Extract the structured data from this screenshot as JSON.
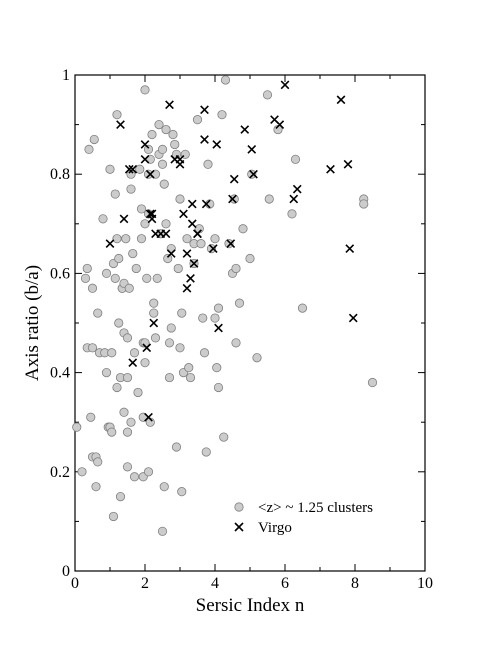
{
  "chart_data": {
    "type": "scatter",
    "title": "",
    "xlabel": "Sersic Index n",
    "ylabel": "Axis ratio (b/a)",
    "xlim": [
      0,
      10
    ],
    "ylim": [
      0,
      1
    ],
    "xticks": [
      0,
      2,
      4,
      6,
      8,
      10
    ],
    "yticks": [
      0,
      0.2,
      0.4,
      0.6,
      0.8,
      1
    ],
    "xtick_labels": [
      "0",
      "2",
      "4",
      "6",
      "8",
      "10"
    ],
    "ytick_labels": [
      "0",
      "0.2",
      "0.4",
      "0.6",
      "0.8",
      "1"
    ],
    "grid": false,
    "legend_position": "bottom-right",
    "series": [
      {
        "name": "<z> ~ 1.25 clusters",
        "marker": "circle",
        "color": "#cccccc",
        "points": [
          [
            0.05,
            0.29
          ],
          [
            0.2,
            0.2
          ],
          [
            0.3,
            0.59
          ],
          [
            0.35,
            0.45
          ],
          [
            0.35,
            0.61
          ],
          [
            0.4,
            0.85
          ],
          [
            0.45,
            0.31
          ],
          [
            0.5,
            0.57
          ],
          [
            0.5,
            0.45
          ],
          [
            0.55,
            0.87
          ],
          [
            0.5,
            0.23
          ],
          [
            0.6,
            0.23
          ],
          [
            0.6,
            0.17
          ],
          [
            0.65,
            0.22
          ],
          [
            0.65,
            0.52
          ],
          [
            0.7,
            0.44
          ],
          [
            0.8,
            0.71
          ],
          [
            0.85,
            0.44
          ],
          [
            0.9,
            0.6
          ],
          [
            0.9,
            0.4
          ],
          [
            0.95,
            0.29
          ],
          [
            1.0,
            0.29
          ],
          [
            1.0,
            0.81
          ],
          [
            1.05,
            0.44
          ],
          [
            1.05,
            0.28
          ],
          [
            1.1,
            0.11
          ],
          [
            1.1,
            0.62
          ],
          [
            1.15,
            0.76
          ],
          [
            1.15,
            0.59
          ],
          [
            1.2,
            0.92
          ],
          [
            1.2,
            0.67
          ],
          [
            1.2,
            0.37
          ],
          [
            1.25,
            0.63
          ],
          [
            1.25,
            0.5
          ],
          [
            1.3,
            0.39
          ],
          [
            1.35,
            0.57
          ],
          [
            1.3,
            0.15
          ],
          [
            1.35,
            0.57
          ],
          [
            1.4,
            0.58
          ],
          [
            1.4,
            0.48
          ],
          [
            1.4,
            0.32
          ],
          [
            1.45,
            0.67
          ],
          [
            1.5,
            0.47
          ],
          [
            1.5,
            0.39
          ],
          [
            1.5,
            0.28
          ],
          [
            1.5,
            0.21
          ],
          [
            1.55,
            0.57
          ],
          [
            1.6,
            0.8
          ],
          [
            1.6,
            0.77
          ],
          [
            1.6,
            0.3
          ],
          [
            1.65,
            0.64
          ],
          [
            1.7,
            0.44
          ],
          [
            1.7,
            0.19
          ],
          [
            1.75,
            0.61
          ],
          [
            1.8,
            0.36
          ],
          [
            1.85,
            0.81
          ],
          [
            1.9,
            0.73
          ],
          [
            1.9,
            0.67
          ],
          [
            1.95,
            0.46
          ],
          [
            1.95,
            0.31
          ],
          [
            1.95,
            0.19
          ],
          [
            2.0,
            0.97
          ],
          [
            2.0,
            0.7
          ],
          [
            2.0,
            0.46
          ],
          [
            2.0,
            0.42
          ],
          [
            2.05,
            0.59
          ],
          [
            2.1,
            0.85
          ],
          [
            2.1,
            0.8
          ],
          [
            2.1,
            0.72
          ],
          [
            2.1,
            0.2
          ],
          [
            2.15,
            0.83
          ],
          [
            2.15,
            0.3
          ],
          [
            2.2,
            0.88
          ],
          [
            2.25,
            0.54
          ],
          [
            2.25,
            0.52
          ],
          [
            2.3,
            0.8
          ],
          [
            2.3,
            0.47
          ],
          [
            2.35,
            0.59
          ],
          [
            2.4,
            0.9
          ],
          [
            2.4,
            0.84
          ],
          [
            2.45,
            0.68
          ],
          [
            2.5,
            0.85
          ],
          [
            2.5,
            0.82
          ],
          [
            2.5,
            0.08
          ],
          [
            2.55,
            0.78
          ],
          [
            2.55,
            0.17
          ],
          [
            2.6,
            0.89
          ],
          [
            2.6,
            0.7
          ],
          [
            2.65,
            0.63
          ],
          [
            2.7,
            0.46
          ],
          [
            2.7,
            0.39
          ],
          [
            2.75,
            0.65
          ],
          [
            2.75,
            0.49
          ],
          [
            2.8,
            0.88
          ],
          [
            2.85,
            0.86
          ],
          [
            2.9,
            0.84
          ],
          [
            2.9,
            0.25
          ],
          [
            2.95,
            0.61
          ],
          [
            3.0,
            0.75
          ],
          [
            3.0,
            0.45
          ],
          [
            3.05,
            0.52
          ],
          [
            3.05,
            0.16
          ],
          [
            3.1,
            0.4
          ],
          [
            3.15,
            0.84
          ],
          [
            3.2,
            0.67
          ],
          [
            3.25,
            0.41
          ],
          [
            3.3,
            0.39
          ],
          [
            3.4,
            0.66
          ],
          [
            3.4,
            0.62
          ],
          [
            3.5,
            0.91
          ],
          [
            3.55,
            0.69
          ],
          [
            3.6,
            0.66
          ],
          [
            3.65,
            0.51
          ],
          [
            3.7,
            0.44
          ],
          [
            3.75,
            0.24
          ],
          [
            3.8,
            0.82
          ],
          [
            3.85,
            0.74
          ],
          [
            3.9,
            0.65
          ],
          [
            4.0,
            0.67
          ],
          [
            4.0,
            0.51
          ],
          [
            4.05,
            0.41
          ],
          [
            4.1,
            0.53
          ],
          [
            4.1,
            0.37
          ],
          [
            4.2,
            0.92
          ],
          [
            4.25,
            0.27
          ],
          [
            4.3,
            0.99
          ],
          [
            4.4,
            0.66
          ],
          [
            4.5,
            0.6
          ],
          [
            4.55,
            0.75
          ],
          [
            4.6,
            0.46
          ],
          [
            4.6,
            0.61
          ],
          [
            4.7,
            0.54
          ],
          [
            4.8,
            0.69
          ],
          [
            5.0,
            0.63
          ],
          [
            5.05,
            0.8
          ],
          [
            5.2,
            0.43
          ],
          [
            5.5,
            0.96
          ],
          [
            5.55,
            0.75
          ],
          [
            5.8,
            0.89
          ],
          [
            6.2,
            0.72
          ],
          [
            6.3,
            0.83
          ],
          [
            6.5,
            0.53
          ],
          [
            8.25,
            0.75
          ],
          [
            8.25,
            0.74
          ],
          [
            8.5,
            0.38
          ]
        ]
      },
      {
        "name": "Virgo",
        "marker": "x",
        "color": "#000000",
        "points": [
          [
            1.0,
            0.66
          ],
          [
            1.3,
            0.9
          ],
          [
            1.4,
            0.71
          ],
          [
            1.55,
            0.81
          ],
          [
            1.65,
            0.81
          ],
          [
            1.65,
            0.42
          ],
          [
            2.0,
            0.86
          ],
          [
            2.0,
            0.83
          ],
          [
            2.05,
            0.45
          ],
          [
            2.1,
            0.31
          ],
          [
            2.15,
            0.72
          ],
          [
            2.15,
            0.8
          ],
          [
            2.2,
            0.72
          ],
          [
            2.2,
            0.71
          ],
          [
            2.25,
            0.5
          ],
          [
            2.3,
            0.68
          ],
          [
            2.45,
            0.68
          ],
          [
            2.6,
            0.68
          ],
          [
            2.7,
            0.94
          ],
          [
            2.75,
            0.64
          ],
          [
            2.85,
            0.83
          ],
          [
            3.0,
            0.83
          ],
          [
            3.0,
            0.82
          ],
          [
            3.1,
            0.72
          ],
          [
            3.2,
            0.64
          ],
          [
            3.2,
            0.57
          ],
          [
            3.3,
            0.59
          ],
          [
            3.35,
            0.74
          ],
          [
            3.35,
            0.7
          ],
          [
            3.4,
            0.62
          ],
          [
            3.5,
            0.68
          ],
          [
            3.5,
            0.68
          ],
          [
            3.7,
            0.87
          ],
          [
            3.7,
            0.93
          ],
          [
            3.75,
            0.74
          ],
          [
            3.95,
            0.65
          ],
          [
            4.05,
            0.86
          ],
          [
            4.1,
            0.49
          ],
          [
            4.45,
            0.66
          ],
          [
            4.5,
            0.75
          ],
          [
            4.55,
            0.79
          ],
          [
            4.85,
            0.89
          ],
          [
            5.05,
            0.85
          ],
          [
            5.1,
            0.8
          ],
          [
            5.7,
            0.91
          ],
          [
            5.85,
            0.9
          ],
          [
            6.0,
            0.98
          ],
          [
            6.25,
            0.75
          ],
          [
            6.35,
            0.77
          ],
          [
            7.3,
            0.81
          ],
          [
            7.6,
            0.95
          ],
          [
            7.8,
            0.82
          ],
          [
            7.85,
            0.65
          ],
          [
            7.95,
            0.51
          ]
        ]
      }
    ]
  }
}
